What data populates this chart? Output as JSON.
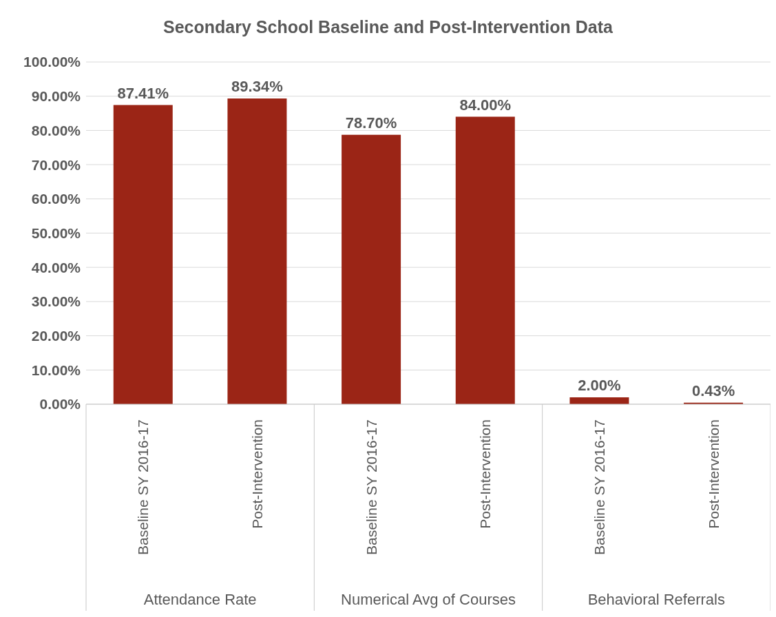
{
  "chart_data": {
    "type": "bar",
    "title": "Secondary School Baseline and Post-Intervention Data",
    "categories": [
      "Baseline SY 2016-17",
      "Post-Intervention",
      "Baseline SY 2016-17",
      "Post-Intervention",
      "Baseline SY 2016-17",
      "Post-Intervention"
    ],
    "values": [
      87.41,
      89.34,
      78.7,
      84.0,
      2.0,
      0.43
    ],
    "value_labels": [
      "87.41%",
      "89.34%",
      "78.70%",
      "84.00%",
      "2.00%",
      "0.43%"
    ],
    "color": "#9b2516",
    "ylim": [
      0,
      100
    ],
    "yticks": [
      {
        "value": 0,
        "label": "0.00%"
      },
      {
        "value": 10,
        "label": "10.00%"
      },
      {
        "value": 20,
        "label": "20.00%"
      },
      {
        "value": 30,
        "label": "30.00%"
      },
      {
        "value": 40,
        "label": "40.00%"
      },
      {
        "value": 50,
        "label": "50.00%"
      },
      {
        "value": 60,
        "label": "60.00%"
      },
      {
        "value": 70,
        "label": "70.00%"
      },
      {
        "value": 80,
        "label": "80.00%"
      },
      {
        "value": 90,
        "label": "90.00%"
      },
      {
        "value": 100,
        "label": "100.00%"
      }
    ],
    "grid": "y",
    "annotations": [
      "Attendance Rate",
      "Numerical Avg of Courses",
      "Behavioral Referrals"
    ]
  }
}
